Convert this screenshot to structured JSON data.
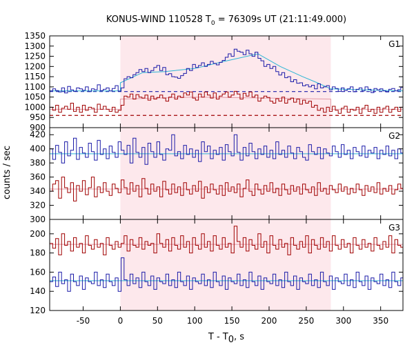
{
  "chart_data": {
    "type": "line",
    "title": {
      "prefix": "KONUS-WIND 110528 T",
      "sub": "0",
      "suffix": " = 76309s UT (21:11:49.000)"
    },
    "xlabel": {
      "main": "T - T",
      "sub": "0",
      "suffix": ", s"
    },
    "ylabel": "counts / sec",
    "xlim": [
      -95,
      380
    ],
    "xticks": [
      -50,
      0,
      50,
      100,
      150,
      200,
      250,
      300,
      350
    ],
    "shaded_interval": [
      0,
      283
    ],
    "shade_color": "#fde8ec",
    "grid": false,
    "colors": {
      "blue": "#1a1aa8",
      "red": "#a00000",
      "cyan": "#2ab5d4",
      "pink": "#e39aa6"
    },
    "panels": [
      {
        "label": "G1",
        "ylim": [
          900,
          1350
        ],
        "yticks": [
          900,
          950,
          1000,
          1050,
          1100,
          1150,
          1200,
          1250,
          1300,
          1350
        ],
        "series": [
          {
            "color": "blue",
            "step": 4,
            "x_start": -95,
            "values": [
              1080,
              1090,
              1082,
              1075,
              1095,
              1070,
              1102,
              1085,
              1078,
              1095,
              1090,
              1083,
              1100,
              1077,
              1090,
              1086,
              1110,
              1082,
              1088,
              1095,
              1080,
              1092,
              1106,
              1079,
              1095,
              1140,
              1150,
              1145,
              1160,
              1170,
              1185,
              1175,
              1190,
              1170,
              1180,
              1195,
              1205,
              1180,
              1195,
              1160,
              1165,
              1150,
              1148,
              1142,
              1155,
              1166,
              1190,
              1180,
              1210,
              1195,
              1205,
              1218,
              1200,
              1210,
              1225,
              1215,
              1208,
              1220,
              1230,
              1245,
              1262,
              1250,
              1285,
              1275,
              1270,
              1258,
              1280,
              1262,
              1250,
              1270,
              1240,
              1228,
              1200,
              1210,
              1190,
              1200,
              1175,
              1158,
              1170,
              1145,
              1150,
              1125,
              1135,
              1118,
              1120,
              1105,
              1110,
              1100,
              1108,
              1090,
              1115,
              1095,
              1100,
              1106,
              1085,
              1100,
              1092,
              1078,
              1095,
              1082,
              1090,
              1100,
              1076,
              1088,
              1095,
              1080,
              1100,
              1088,
              1072,
              1092,
              1085,
              1090,
              1080,
              1075,
              1088,
              1092,
              1080,
              1086,
              1098
            ]
          },
          {
            "color": "red",
            "step": 4,
            "x_start": -95,
            "values": [
              1000,
              985,
              1010,
              975,
              995,
              1005,
              990,
              1020,
              980,
              1000,
              975,
              1010,
              985,
              1000,
              995,
              975,
              1015,
              990,
              1005,
              990,
              980,
              1000,
              975,
              985,
              1010,
              1055,
              1050,
              1065,
              1040,
              1062,
              1050,
              1045,
              1060,
              1035,
              1055,
              1040,
              1048,
              1060,
              1045,
              1030,
              1050,
              1065,
              1040,
              1055,
              1048,
              1070,
              1060,
              1075,
              1045,
              1035,
              1065,
              1050,
              1075,
              1060,
              1045,
              1070,
              1040,
              1055,
              1065,
              1075,
              1050,
              1060,
              1078,
              1065,
              1040,
              1068,
              1055,
              1075,
              1050,
              1060,
              1030,
              1045,
              1055,
              1048,
              1030,
              1020,
              1042,
              1030,
              1050,
              1020,
              1038,
              1045,
              1025,
              1040,
              1015,
              1035,
              1020,
              1030,
              1000,
              1010,
              985,
              995,
              975,
              1000,
              980,
              1005,
              985,
              970,
              995,
              1005,
              975,
              990,
              985,
              1000,
              970,
              995,
              1010,
              980,
              990,
              970,
              1000,
              975,
              995,
              1005,
              975,
              990,
              1000,
              980,
              1000
            ]
          }
        ],
        "backgrounds": [
          {
            "color": "blue",
            "style": "dashed",
            "value": 1077
          },
          {
            "color": "red",
            "style": "dashed",
            "value": 960
          }
        ],
        "fits": [
          {
            "color": "cyan",
            "x": [
              -95,
              0,
              0,
              30,
              60,
              100,
              140,
              185,
              215,
              245,
              265,
              283,
              380
            ],
            "y": [
              1080,
              1080,
              1120,
              1170,
              1175,
              1190,
              1225,
              1262,
              1200,
              1150,
              1120,
              1090,
              1080
            ]
          },
          {
            "color": "pink",
            "x": [
              -95,
              0,
              0,
              100,
              200,
              283,
              283,
              380
            ],
            "y": [
              990,
              990,
              1040,
              1050,
              1045,
              1040,
              990,
              990
            ]
          }
        ]
      },
      {
        "label": "G2",
        "ylim": [
          300,
          430
        ],
        "yticks": [
          300,
          320,
          340,
          360,
          380,
          400,
          420
        ],
        "series": [
          {
            "color": "blue",
            "step": 4,
            "x_start": -95,
            "values": [
              400,
              385,
              405,
              395,
              380,
              410,
              390,
              398,
              415,
              385,
              402,
              394,
              388,
              408,
              396,
              384,
              412,
              392,
              400,
              386,
              404,
              395,
              388,
              410,
              398,
              392,
              405,
              380,
              415,
              395,
              388,
              402,
              378,
              408,
              396,
              388,
              410,
              392,
              384,
              400,
              398,
              420,
              390,
              396,
              386,
              405,
              392,
              400,
              388,
              398,
              382,
              410,
              396,
              404,
              386,
              398,
              392,
              402,
              384,
              406,
              396,
              390,
              420,
              395,
              384,
              402,
              390,
              408,
              396,
              386,
              400,
              392,
              404,
              388,
              398,
              386,
              410,
              392,
              398,
              388,
              404,
              394,
              386,
              402,
              396,
              388,
              384,
              406,
              396,
              392,
              402,
              386,
              400,
              394,
              390,
              404,
              396,
              388,
              406,
              392,
              398,
              386,
              402,
              396,
              390,
              404,
              388,
              398,
              394,
              402,
              386,
              398,
              392,
              404,
              390,
              398,
              386,
              400,
              394
            ]
          },
          {
            "color": "red",
            "step": 4,
            "x_start": -95,
            "values": [
              340,
              350,
              355,
              330,
              360,
              345,
              338,
              352,
              326,
              348,
              340,
              355,
              335,
              345,
              360,
              332,
              346,
              338,
              352,
              340,
              334,
              350,
              344,
              338,
              356,
              345,
              336,
              352,
              340,
              348,
              332,
              358,
              344,
              336,
              350,
              340,
              346,
              332,
              354,
              342,
              336,
              350,
              338,
              346,
              334,
              352,
              342,
              336,
              348,
              340,
              354,
              330,
              346,
              338,
              350,
              342,
              336,
              348,
              334,
              352,
              340,
              346,
              338,
              350,
              332,
              344,
              356,
              340,
              334,
              350,
              342,
              336,
              348,
              340,
              352,
              338,
              344,
              334,
              350,
              342,
              336,
              348,
              340,
              346,
              336,
              350,
              342,
              338,
              346,
              334,
              352,
              340,
              344,
              336,
              348,
              342,
              338,
              350,
              340,
              346,
              336,
              344,
              338,
              350,
              342,
              334,
              348,
              340,
              346,
              338,
              352,
              336,
              344,
              340,
              348,
              336,
              342,
              350,
              344
            ]
          }
        ],
        "backgrounds": [],
        "fits": [
          {
            "color": "cyan",
            "x": [
              -95,
              380
            ],
            "y": [
              393,
              393
            ]
          },
          {
            "color": "pink",
            "x": [
              -95,
              380
            ],
            "y": [
              343,
              343
            ]
          }
        ]
      },
      {
        "label": "G3",
        "ylim": [
          120,
          215
        ],
        "yticks": [
          120,
          140,
          160,
          180,
          200
        ],
        "series": [
          {
            "color": "red",
            "step": 4,
            "x_start": -95,
            "values": [
              190,
              185,
              195,
              178,
              200,
              188,
              192,
              182,
              196,
              186,
              190,
              180,
              198,
              188,
              184,
              194,
              186,
              190,
              178,
              196,
              188,
              184,
              192,
              186,
              190,
              198,
              182,
              194,
              188,
              186,
              196,
              184,
              192,
              188,
              190,
              180,
              200,
              190,
              186,
              194,
              182,
              196,
              188,
              184,
              198,
              186,
              192,
              180,
              196,
              188,
              184,
              200,
              186,
              192,
              182,
              198,
              188,
              184,
              196,
              186,
              190,
              180,
              208,
              192,
              186,
              196,
              182,
              194,
              188,
              184,
              200,
              186,
              192,
              180,
              198,
              188,
              184,
              194,
              186,
              190,
              178,
              196,
              188,
              184,
              192,
              186,
              198,
              180,
              194,
              188,
              184,
              196,
              186,
              192,
              182,
              198,
              188,
              184,
              194,
              186,
              190,
              180,
              196,
              188,
              184,
              194,
              186,
              190,
              182,
              196,
              188,
              184,
              192,
              186,
              198,
              180,
              194,
              188,
              186
            ]
          },
          {
            "color": "blue",
            "step": 4,
            "x_start": -95,
            "values": [
              150,
              155,
              145,
              160,
              148,
              152,
              140,
              158,
              150,
              146,
              156,
              142,
              154,
              150,
              148,
              160,
              146,
              152,
              144,
              158,
              150,
              146,
              154,
              140,
              175,
              152,
              146,
              158,
              148,
              154,
              144,
              160,
              150,
              146,
              156,
              142,
              154,
              150,
              148,
              158,
              146,
              152,
              144,
              160,
              150,
              146,
              156,
              142,
              154,
              150,
              148,
              158,
              146,
              152,
              144,
              160,
              150,
              146,
              156,
              142,
              154,
              150,
              148,
              158,
              146,
              152,
              144,
              160,
              150,
              146,
              156,
              142,
              154,
              150,
              148,
              158,
              146,
              152,
              144,
              160,
              150,
              146,
              156,
              142,
              154,
              150,
              148,
              158,
              146,
              152,
              144,
              160,
              150,
              146,
              156,
              142,
              154,
              150,
              148,
              158,
              146,
              152,
              144,
              160,
              150,
              146,
              156,
              142,
              154,
              150,
              148,
              158,
              146,
              152,
              144,
              160,
              150,
              146,
              154
            ]
          }
        ],
        "backgrounds": [],
        "fits": [
          {
            "color": "cyan",
            "x": [
              -95,
              380
            ],
            "y": [
              151,
              151
            ]
          },
          {
            "color": "pink",
            "x": [
              -95,
              380
            ],
            "y": [
              189,
              189
            ]
          }
        ]
      }
    ]
  }
}
